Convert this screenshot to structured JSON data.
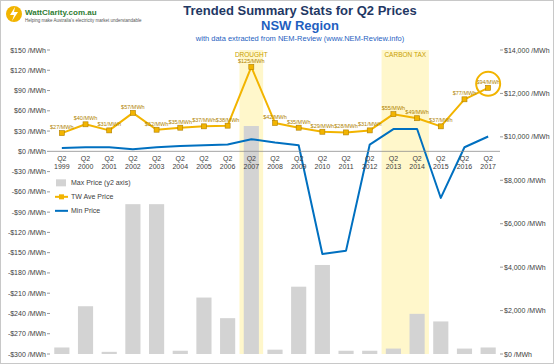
{
  "logo": {
    "name": "WattClarity.com.au",
    "tagline": "Helping make Australia's electricity market understandable"
  },
  "chart_data": {
    "type": "bar",
    "title": "Trended Summary Stats for Q2 Prices",
    "subtitle": [
      "NSW Region",
      "with data extracted from NEM-Review (www.NEM-Review.info)"
    ],
    "categories": [
      "Q2 1999",
      "Q2 2000",
      "Q2 2001",
      "Q2 2002",
      "Q2 2003",
      "Q2 2004",
      "Q2 2005",
      "Q2 2006",
      "Q2 2007",
      "Q2 2008",
      "Q2 2009",
      "Q2 2010",
      "Q2 2011",
      "Q2 2012",
      "Q2 2013",
      "Q2 2014",
      "Q2 2015",
      "Q2 2016",
      "Q2 2017"
    ],
    "series": [
      {
        "name": "Max Price (y2 axis)",
        "type": "bar",
        "axis": "y2",
        "color": "#d3d3d3",
        "values": [
          300,
          2200,
          100,
          6900,
          6900,
          150,
          2600,
          1650,
          10500,
          200,
          3100,
          4100,
          150,
          150,
          250,
          1850,
          1500,
          250,
          300
        ]
      },
      {
        "name": "TW Ave Price",
        "type": "line",
        "color": "#f2b400",
        "marker": "square",
        "values": [
          27,
          40,
          31,
          57,
          32,
          35,
          37,
          38,
          125,
          42,
          35,
          29,
          28,
          31,
          55,
          49,
          37,
          77,
          94
        ],
        "value_labels": [
          "$27/MWh",
          "$40/MWh",
          "$31/MWh",
          "$57/MWh",
          "$32/MWh",
          "$35/MWh",
          "$37/MWh",
          "$38/MWh",
          "$125/MWh",
          "$42/MWh",
          "$35/MWh",
          "$29/MWh",
          "$28/MWh",
          "$31/MWh",
          "$55/MWh",
          "$49/MWh",
          "$37/MWh",
          "$77/MWh",
          "$94/MWh"
        ]
      },
      {
        "name": "Min Price",
        "type": "line",
        "color": "#0070c0",
        "marker": "none",
        "values": [
          5,
          6,
          6,
          3,
          6,
          8,
          9,
          10,
          18,
          13,
          9,
          -152,
          -147,
          10,
          33,
          33,
          -69,
          6,
          22
        ]
      }
    ],
    "annotations": [
      {
        "text": "DROUGHT",
        "from": "Q2 2007",
        "to": "Q2 2007"
      },
      {
        "text": "CARBON TAX",
        "from": "Q2 2013",
        "to": "Q2 2014"
      }
    ],
    "ylim": [
      -300,
      150
    ],
    "yticks": [
      {
        "value": -300,
        "label": "-$300 /MWh"
      },
      {
        "value": -270,
        "label": "-$270 /MWh"
      },
      {
        "value": -240,
        "label": "-$240 /MWh"
      },
      {
        "value": -210,
        "label": "-$210 /MWh"
      },
      {
        "value": -180,
        "label": "-$180 /MWh"
      },
      {
        "value": -150,
        "label": "-$150 /MWh"
      },
      {
        "value": -120,
        "label": "-$120 /MWh"
      },
      {
        "value": -90,
        "label": "-$90 /MWh"
      },
      {
        "value": -60,
        "label": "-$60 /MWh"
      },
      {
        "value": -30,
        "label": "-$30 /MWh"
      },
      {
        "value": 0,
        "label": "$0 /MWh"
      },
      {
        "value": 30,
        "label": "$30 /MWh"
      },
      {
        "value": 60,
        "label": "$60 /MWh"
      },
      {
        "value": 90,
        "label": "$90 /MWh"
      },
      {
        "value": 120,
        "label": "$120 /MWh"
      },
      {
        "value": 150,
        "label": "$150 /MWh"
      }
    ],
    "y2lim": [
      0,
      14000
    ],
    "y2ticks": [
      {
        "value": 0,
        "label": "$0 /MWh"
      },
      {
        "value": 2000,
        "label": "$2,000 /MWh"
      },
      {
        "value": 4000,
        "label": "$4,000 /MWh"
      },
      {
        "value": 6000,
        "label": "$6,000 /MWh"
      },
      {
        "value": 8000,
        "label": "$8,000 /MWh"
      },
      {
        "value": 10000,
        "label": "$10,000 /MWh"
      },
      {
        "value": 12000,
        "label": "$12,000 /MWh"
      },
      {
        "value": 14000,
        "label": "$14,000 /MWh"
      }
    ],
    "grid": false,
    "legend": "left",
    "data_labels": true
  }
}
